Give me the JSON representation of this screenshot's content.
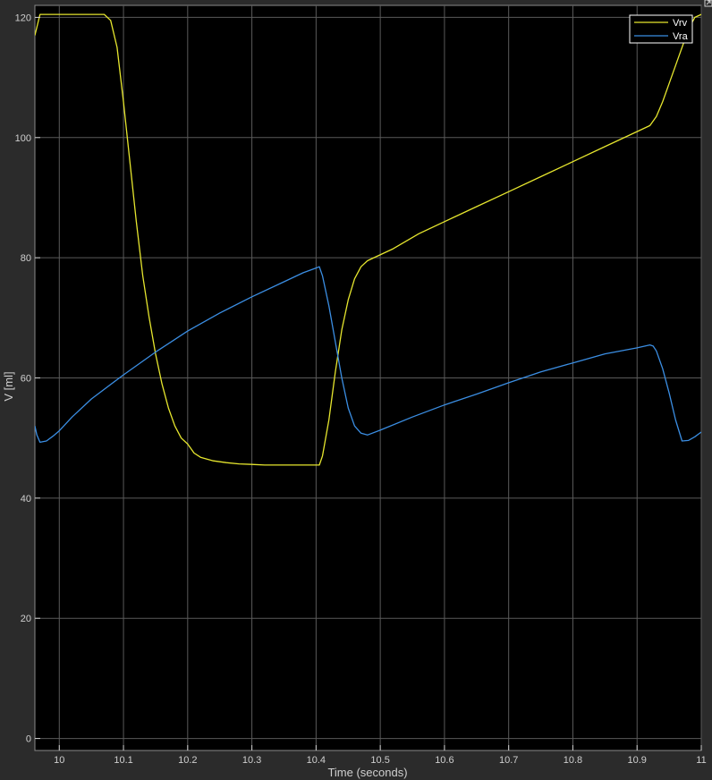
{
  "chart_data": {
    "type": "line",
    "title": "",
    "xlabel": "Time (seconds)",
    "ylabel": "V [ml]",
    "xlim": [
      9.962,
      11.0
    ],
    "ylim": [
      -2,
      122
    ],
    "x_ticks": [
      10,
      10.1,
      10.2,
      10.3,
      10.4,
      10.5,
      10.6,
      10.7,
      10.8,
      10.9,
      11
    ],
    "x_tick_labels": [
      "10",
      "10.1",
      "10.2",
      "10.3",
      "10.4",
      "10.5",
      "10.6",
      "10.7",
      "10.8",
      "10.9",
      "11"
    ],
    "y_ticks": [
      0,
      20,
      40,
      60,
      80,
      100,
      120
    ],
    "y_tick_labels": [
      "0",
      "20",
      "40",
      "60",
      "80",
      "100",
      "120"
    ],
    "grid": true,
    "legend_position": "top-right",
    "series": [
      {
        "name": "Vrv",
        "color": "#e6e62e",
        "x": [
          9.962,
          9.97,
          9.99,
          10.02,
          10.05,
          10.07,
          10.08,
          10.09,
          10.1,
          10.11,
          10.12,
          10.13,
          10.14,
          10.15,
          10.16,
          10.17,
          10.18,
          10.19,
          10.2,
          10.21,
          10.22,
          10.24,
          10.26,
          10.28,
          10.3,
          10.32,
          10.35,
          10.38,
          10.405,
          10.41,
          10.42,
          10.43,
          10.44,
          10.45,
          10.46,
          10.47,
          10.48,
          10.49,
          10.52,
          10.56,
          10.6,
          10.65,
          10.7,
          10.75,
          10.8,
          10.85,
          10.9,
          10.92,
          10.93,
          10.94,
          10.95,
          10.96,
          10.97,
          10.98,
          10.99,
          11.0
        ],
        "y": [
          117,
          120.5,
          120.5,
          120.5,
          120.5,
          120.5,
          119.5,
          115,
          106,
          96,
          86,
          77,
          70,
          64,
          59,
          55,
          52,
          50,
          49,
          47.5,
          46.8,
          46.2,
          45.9,
          45.7,
          45.6,
          45.5,
          45.5,
          45.5,
          45.5,
          47,
          53,
          61,
          68,
          73,
          76.5,
          78.5,
          79.5,
          80,
          81.5,
          84,
          86,
          88.5,
          91,
          93.5,
          96,
          98.5,
          101,
          102,
          103.5,
          106,
          109,
          112,
          115,
          118,
          120,
          120.5
        ]
      },
      {
        "name": "Vra",
        "color": "#3b8ee3",
        "x": [
          9.962,
          9.965,
          9.97,
          9.98,
          9.99,
          10.0,
          10.02,
          10.05,
          10.1,
          10.15,
          10.2,
          10.25,
          10.3,
          10.35,
          10.38,
          10.4,
          10.405,
          10.41,
          10.42,
          10.43,
          10.44,
          10.45,
          10.46,
          10.47,
          10.48,
          10.5,
          10.55,
          10.6,
          10.65,
          10.7,
          10.75,
          10.8,
          10.85,
          10.9,
          10.92,
          10.925,
          10.93,
          10.94,
          10.95,
          10.96,
          10.97,
          10.98,
          10.99,
          11.0
        ],
        "y": [
          52,
          50.5,
          49.3,
          49.5,
          50.3,
          51.2,
          53.5,
          56.5,
          60.5,
          64.3,
          67.8,
          70.8,
          73.5,
          76,
          77.5,
          78.3,
          78.5,
          77,
          72,
          66,
          60,
          55,
          52,
          50.8,
          50.5,
          51.3,
          53.5,
          55.5,
          57.3,
          59.2,
          61,
          62.5,
          64,
          65,
          65.5,
          65.3,
          64.5,
          61.5,
          57.5,
          53,
          49.5,
          49.6,
          50.2,
          51
        ]
      }
    ]
  }
}
